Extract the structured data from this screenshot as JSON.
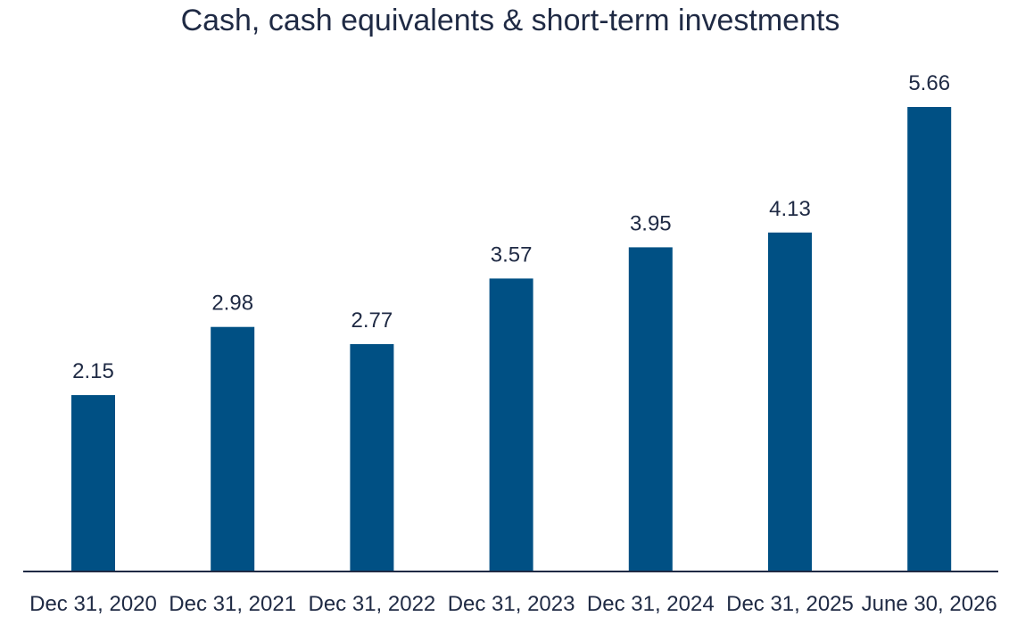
{
  "chart_data": {
    "type": "bar",
    "title": "Cash, cash equivalents & short-term investments",
    "categories": [
      "Dec 31, 2020",
      "Dec 31, 2021",
      "Dec 31, 2022",
      "Dec 31, 2023",
      "Dec 31, 2024",
      "Dec 31, 2025",
      "June 30, 2026"
    ],
    "values": [
      2.15,
      2.98,
      2.77,
      3.57,
      3.95,
      4.13,
      5.66
    ],
    "data_labels": [
      "2.15",
      "2.98",
      "2.77",
      "3.57",
      "3.95",
      "4.13",
      "5.66"
    ],
    "xlabel": "",
    "ylabel": "",
    "ylim": [
      0,
      5.66
    ],
    "grid": false,
    "legend": "none",
    "colors": {
      "bar": "#005084",
      "axis": "#1f2a44",
      "text": "#1f2a44"
    }
  }
}
